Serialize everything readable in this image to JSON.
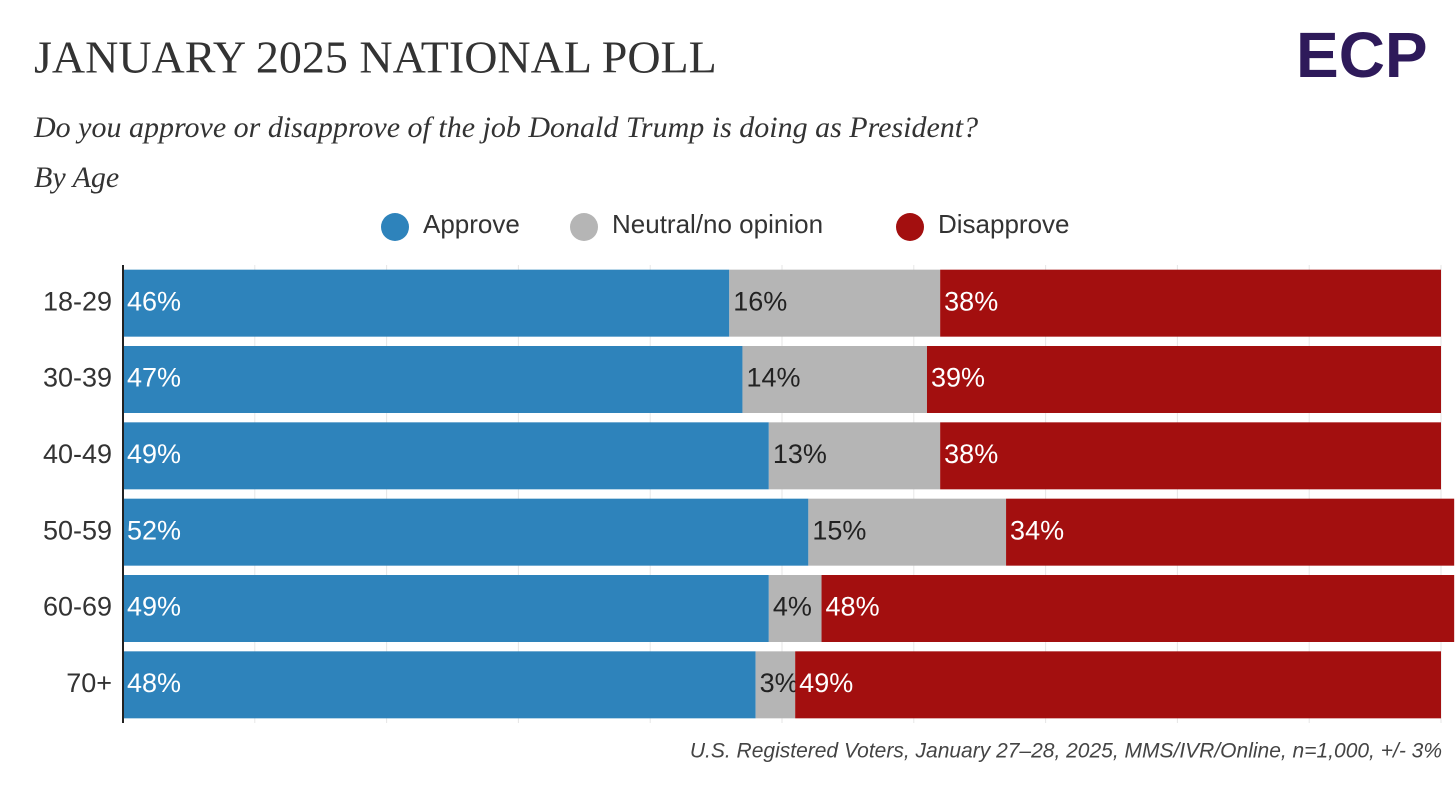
{
  "chart_data": {
    "type": "stacked-bar-horizontal",
    "title": "JANUARY 2025 NATIONAL POLL",
    "subtitle": "Do you approve or disapprove of the job Donald Trump is doing as President?",
    "subtitle2": "By Age",
    "logo": "ECP",
    "source": "U.S. Registered Voters, January 27–28, 2025, MMS/IVR/Online, n=1,000, +/- 3%",
    "categories": [
      "18-29",
      "30-39",
      "40-49",
      "50-59",
      "60-69",
      "70+"
    ],
    "series": [
      {
        "name": "Approve",
        "color": "#2e83bb",
        "values": [
          46,
          47,
          49,
          52,
          49,
          48
        ],
        "value_labels": [
          "46%",
          "47%",
          "49%",
          "52%",
          "49%",
          "48%"
        ]
      },
      {
        "name": "Neutral/no opinion",
        "color": "#b5b5b5",
        "values": [
          16,
          14,
          13,
          15,
          4,
          3
        ],
        "value_labels": [
          "16%",
          "14%",
          "13%",
          "15%",
          "4%",
          "3%"
        ]
      },
      {
        "name": "Disapprove",
        "color": "#a30f0f",
        "values": [
          38,
          39,
          38,
          34,
          48,
          49
        ],
        "value_labels": [
          "38%",
          "39%",
          "38%",
          "34%",
          "48%",
          "49%"
        ]
      }
    ],
    "xlim": [
      0,
      100
    ],
    "xticks": [
      0,
      10,
      20,
      30,
      40,
      50,
      60,
      70,
      80,
      90,
      100
    ],
    "grid": true
  }
}
